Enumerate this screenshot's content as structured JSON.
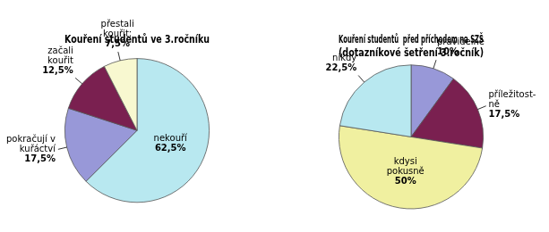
{
  "chart_data": [
    {
      "type": "pie",
      "title": "Kouření studentů ve 3.ročníku",
      "categories": [
        "nekouří",
        "pokračují v\nkuřáctví",
        "začali\nkouřit",
        "přestali\nkouřit;"
      ],
      "values": [
        62.5,
        17.5,
        12.5,
        7.5
      ],
      "value_labels": [
        "62,5%",
        "17,5%",
        "12,5%",
        "7,5%"
      ],
      "colors": [
        "#b8e8f0",
        "#9898d8",
        "#7a2050",
        "#f8f8d0"
      ],
      "data_labels": true
    },
    {
      "type": "pie",
      "title": "Kouření studentů  před příchodem na SZŠ\n(dotazníkové šetření 3.ročník)",
      "categories": [
        "pravidelně",
        "příležitost-\nně",
        "kdysi\npokusně",
        "nikdy"
      ],
      "values": [
        10.0,
        17.5,
        50.0,
        22.5
      ],
      "value_labels": [
        "10%",
        "17,5%",
        "50%",
        "22,5%"
      ],
      "colors": [
        "#9898d8",
        "#7a2050",
        "#f0f0a0",
        "#b8e8f0"
      ],
      "data_labels": true
    }
  ]
}
